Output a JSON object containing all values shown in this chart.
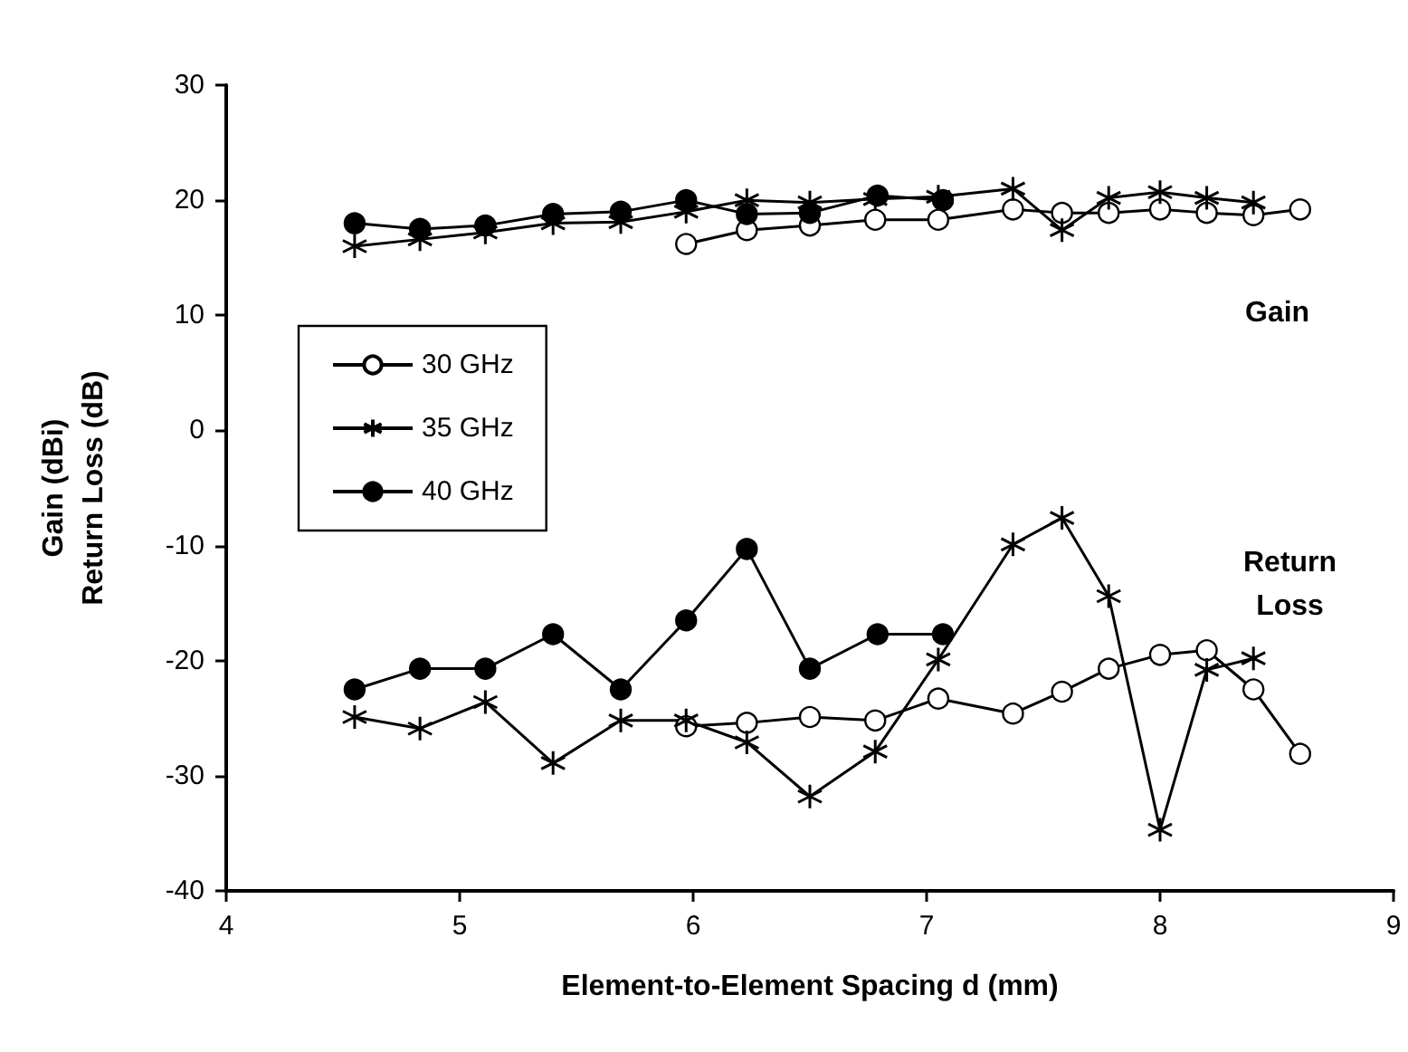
{
  "chart_data": {
    "type": "line",
    "xlabel": "Element-to-Element Spacing d (mm)",
    "ylabel": "Gain (dBi)\nReturn Loss (dB)",
    "xlim": [
      4,
      9
    ],
    "xticks": [
      4,
      5,
      6,
      7,
      8,
      9
    ],
    "ylim": [
      -40,
      30
    ],
    "yticks": [
      -40,
      -30,
      -20,
      -10,
      0,
      10,
      20,
      30
    ],
    "legend": "left",
    "series": [
      {
        "name": "30 GHz",
        "color": "#ffffff",
        "marker": "circle",
        "x": [
          5.97,
          6.23,
          6.5,
          6.78,
          7.05,
          7.37,
          7.58,
          7.78,
          8.0,
          8.2,
          8.4,
          8.6
        ],
        "values": [
          16.2,
          17.4,
          17.8,
          18.3,
          18.3,
          19.2,
          18.9,
          18.9,
          19.2,
          18.9,
          18.7,
          19.2
        ]
      },
      {
        "name": "35 GHz",
        "color": "#000000",
        "marker": "cross",
        "x": [
          4.55,
          4.83,
          5.11,
          5.4,
          5.69,
          5.97,
          6.23,
          6.5,
          6.78,
          7.05,
          7.37,
          7.58,
          7.78,
          8.0,
          8.2,
          8.4
        ],
        "values": [
          16.0,
          16.6,
          17.2,
          18.0,
          18.1,
          19.0,
          20.0,
          19.8,
          20.1,
          20.3,
          21.0,
          17.4,
          20.2,
          20.7,
          20.2,
          19.8
        ]
      },
      {
        "name": "40 GHz",
        "color": "#000000",
        "marker": "circle",
        "x": [
          4.55,
          4.83,
          5.11,
          5.4,
          5.69,
          5.97,
          6.23,
          6.5,
          6.79,
          7.07
        ],
        "values": [
          18.0,
          17.5,
          17.8,
          18.8,
          19.0,
          20.0,
          18.8,
          18.9,
          20.4,
          20.0
        ]
      },
      {
        "color": "#ffffff",
        "marker": "circle",
        "x": [
          5.97,
          6.23,
          6.5,
          6.78,
          7.05,
          7.37,
          7.58,
          7.78,
          8.0,
          8.2,
          8.4,
          8.6
        ],
        "values": [
          -25.7,
          -25.4,
          -24.9,
          -25.2,
          -23.3,
          -24.6,
          -22.7,
          -20.7,
          -19.5,
          -19.1,
          -22.5,
          -28.1
        ]
      },
      {
        "color": "#000000",
        "marker": "cross",
        "x": [
          4.55,
          4.83,
          5.11,
          5.4,
          5.69,
          5.97,
          6.23,
          6.5,
          6.78,
          7.05,
          7.37,
          7.58,
          7.78,
          8.0,
          8.2,
          8.4
        ],
        "values": [
          -24.9,
          -25.9,
          -23.6,
          -28.9,
          -25.2,
          -25.2,
          -27.1,
          -31.8,
          -27.9,
          -19.9,
          -9.9,
          -7.6,
          -14.4,
          -34.7,
          -20.8,
          -19.8
        ]
      },
      {
        "color": "#000000",
        "marker": "circle",
        "x": [
          4.55,
          4.83,
          5.11,
          5.4,
          5.69,
          5.97,
          6.23,
          6.5,
          6.79,
          7.07
        ],
        "values": [
          -22.5,
          -20.7,
          -20.7,
          -17.7,
          -22.5,
          -16.5,
          -10.3,
          -20.7,
          -17.7,
          -17.7
        ]
      }
    ],
    "annotations": [
      "Gain",
      "Return\nLoss"
    ]
  }
}
